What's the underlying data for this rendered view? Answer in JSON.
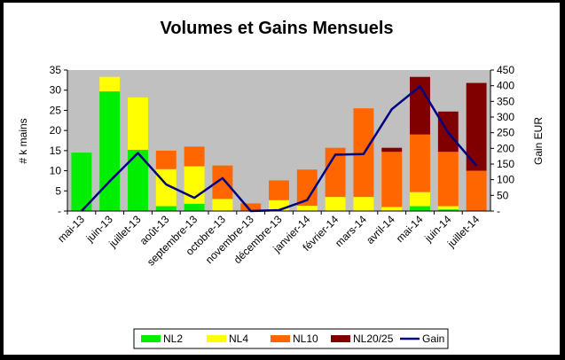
{
  "chart_data": {
    "type": "bar",
    "stacked": true,
    "title": "Volumes et Gains Mensuels",
    "ylabel": "# k mains",
    "y2label": "Gain EUR",
    "ylim": [
      0,
      35
    ],
    "y2lim": [
      0,
      450
    ],
    "yticks": [
      "-",
      "5",
      "10",
      "15",
      "20",
      "25",
      "30",
      "35"
    ],
    "y2ticks": [
      "-",
      "50",
      "100",
      "150",
      "200",
      "250",
      "300",
      "350",
      "400",
      "450"
    ],
    "categories": [
      "mai-13",
      "juin-13",
      "juillet-13",
      "août-13",
      "septembre-13",
      "octobre-13",
      "novembre-13",
      "décembre-13",
      "janvier-14",
      "février-14",
      "mars-14",
      "avril-14",
      "mai-14",
      "juin-14",
      "juillet-14"
    ],
    "series": [
      {
        "name": "NL2",
        "color": "#00ee00",
        "values": [
          14.5,
          29.7,
          15.2,
          1.2,
          1.8,
          0,
          0,
          0,
          0,
          0,
          0,
          0,
          1.2,
          0.4,
          0
        ]
      },
      {
        "name": "NL4",
        "color": "#ffff00",
        "values": [
          0,
          3.6,
          13.0,
          9.2,
          9.3,
          3.0,
          0,
          2.7,
          1.3,
          3.5,
          3.5,
          1.0,
          3.5,
          0.8,
          0
        ]
      },
      {
        "name": "NL10",
        "color": "#ff6600",
        "values": [
          0,
          0,
          0,
          4.6,
          4.9,
          8.3,
          1.9,
          4.9,
          9.0,
          12.2,
          22.0,
          13.7,
          14.3,
          13.5,
          10.0
        ]
      },
      {
        "name": "NL20/25",
        "color": "#800000",
        "values": [
          0,
          0,
          0,
          0,
          0,
          0,
          0,
          0,
          0,
          0,
          0,
          1.0,
          14.3,
          10.0,
          21.8
        ]
      }
    ],
    "line_series": {
      "name": "Gain",
      "color": "#000080",
      "axis": "secondary",
      "values": [
        0,
        95,
        185,
        85,
        42,
        105,
        0,
        3,
        35,
        180,
        182,
        325,
        398,
        250,
        145
      ]
    },
    "legend_position": "bottom",
    "plot_background": "#c0c0c0",
    "grid": false
  }
}
